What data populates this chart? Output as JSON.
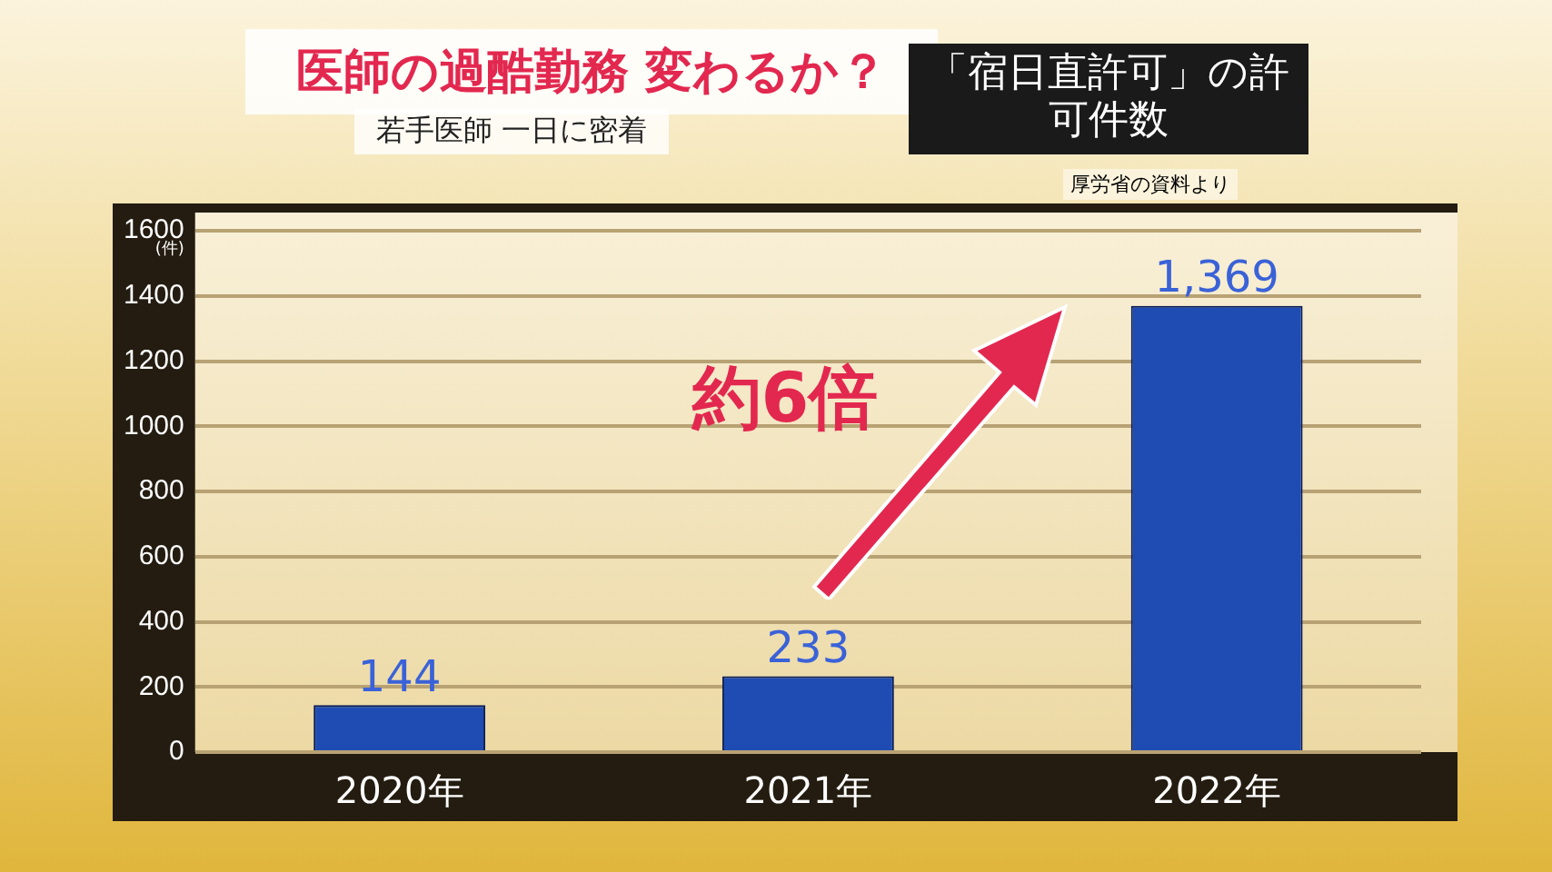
{
  "chart_data": {
    "type": "bar",
    "title": "「宿日直許可」の許可件数",
    "subtitle": "医師の過酷勤務 変わるか？",
    "annotations": [
      "若手医師 一日に密着",
      "厚労省の資料より",
      "約6倍"
    ],
    "ylabel": "(件)",
    "categories": [
      "2020年",
      "2021年",
      "2022年"
    ],
    "values": [
      144,
      233,
      1369
    ],
    "color": "#1f4cb3",
    "value_labels": [
      "144",
      "233",
      "1,369"
    ],
    "ylim": [
      0,
      1600
    ],
    "yticks": [
      0,
      200,
      400,
      600,
      800,
      1000,
      1200,
      1400,
      1600
    ],
    "grid": "y",
    "legend": false
  }
}
